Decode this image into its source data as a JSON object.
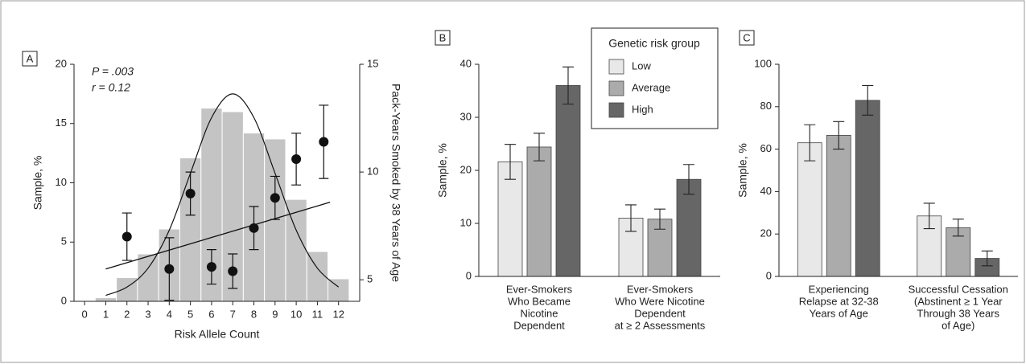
{
  "chart_data": [
    {
      "type": "histogram",
      "label": "A",
      "annotations": [
        "P = .003",
        "r = 0.12"
      ],
      "xlabel": "Risk Allele Count",
      "ylabel": "Sample, %",
      "y2label": "Pack-Years Smoked by 38 Years of Age",
      "bins": [
        0.5,
        1.5,
        2.5,
        3.5,
        4.5,
        5.5,
        6.5,
        7.5,
        8.5,
        9.5,
        10.5,
        11.5,
        12.5
      ],
      "values": [
        0.3,
        2.0,
        4.0,
        6.1,
        12.1,
        16.3,
        16.0,
        14.2,
        13.7,
        8.6,
        4.2,
        1.9
      ],
      "color": "#c4c4c4",
      "xlim": [
        -0.5,
        13
      ],
      "xticks": [
        0,
        1,
        2,
        3,
        4,
        5,
        6,
        7,
        8,
        9,
        10,
        11,
        12
      ],
      "ylim": [
        0,
        20
      ],
      "yticks": [
        0,
        5,
        10,
        15,
        20
      ],
      "y2lim": [
        4,
        15
      ],
      "y2ticks": [
        5,
        10,
        15
      ],
      "curve": {
        "x": [
          1,
          2,
          3,
          4,
          5,
          6,
          7,
          8,
          9,
          10,
          11,
          12
        ],
        "values": [
          0.5,
          1.2,
          2.8,
          6.0,
          10.8,
          15.5,
          17.5,
          15.5,
          10.8,
          6.0,
          2.8,
          1.2
        ]
      },
      "points": {
        "axis": "y2",
        "x": [
          2,
          4,
          5,
          6,
          7,
          8,
          9,
          10,
          11.3
        ],
        "values": [
          7.0,
          5.5,
          9.0,
          5.6,
          5.4,
          7.4,
          8.8,
          10.6,
          11.4
        ],
        "errors": [
          1.1,
          1.45,
          1.0,
          0.8,
          0.8,
          1.0,
          1.0,
          1.2,
          1.7
        ]
      },
      "fit": {
        "axis": "y2",
        "x": [
          1,
          11.6
        ],
        "values": [
          5.5,
          8.6
        ]
      }
    },
    {
      "type": "grouped-bar",
      "label": "B",
      "ylabel": "Sample, %",
      "categories": [
        [
          "Ever-Smokers",
          "Who Became",
          "Nicotine",
          "Dependent"
        ],
        [
          "Ever-Smokers",
          "Who Were Nicotine",
          "Dependent",
          "at ≥ 2 Assessments"
        ]
      ],
      "series": [
        {
          "name": "Low",
          "color": "#e8e8e8",
          "values": [
            21.6,
            11.0
          ],
          "errors": [
            3.3,
            2.5
          ]
        },
        {
          "name": "Average",
          "color": "#ababab",
          "values": [
            24.4,
            10.8
          ],
          "errors": [
            2.6,
            1.9
          ]
        },
        {
          "name": "High",
          "color": "#666666",
          "values": [
            36.0,
            18.3
          ],
          "errors": [
            3.5,
            2.8
          ]
        }
      ],
      "ylim": [
        0,
        40
      ],
      "yticks": [
        0,
        10,
        20,
        30,
        40
      ],
      "legend": "top-right",
      "legend_title": "Genetic risk group"
    },
    {
      "type": "grouped-bar",
      "label": "C",
      "ylabel": "Sample, %",
      "categories": [
        [
          "Experiencing",
          "Relapse at 32-38",
          "Years of Age"
        ],
        [
          "Successful Cessation",
          "(Abstinent ≥ 1 Year",
          "Through 38 Years",
          "of Age)"
        ]
      ],
      "series": [
        {
          "color": "#e8e8e8",
          "values": [
            63.0,
            28.5
          ],
          "errors": [
            8.5,
            6.0
          ]
        },
        {
          "color": "#ababab",
          "values": [
            66.5,
            23.0
          ],
          "errors": [
            6.5,
            4.0
          ]
        },
        {
          "color": "#666666",
          "values": [
            83.0,
            8.5
          ],
          "errors": [
            7.0,
            3.5
          ]
        }
      ],
      "ylim": [
        0,
        100
      ],
      "yticks": [
        0,
        20,
        40,
        60,
        80,
        100
      ]
    }
  ]
}
